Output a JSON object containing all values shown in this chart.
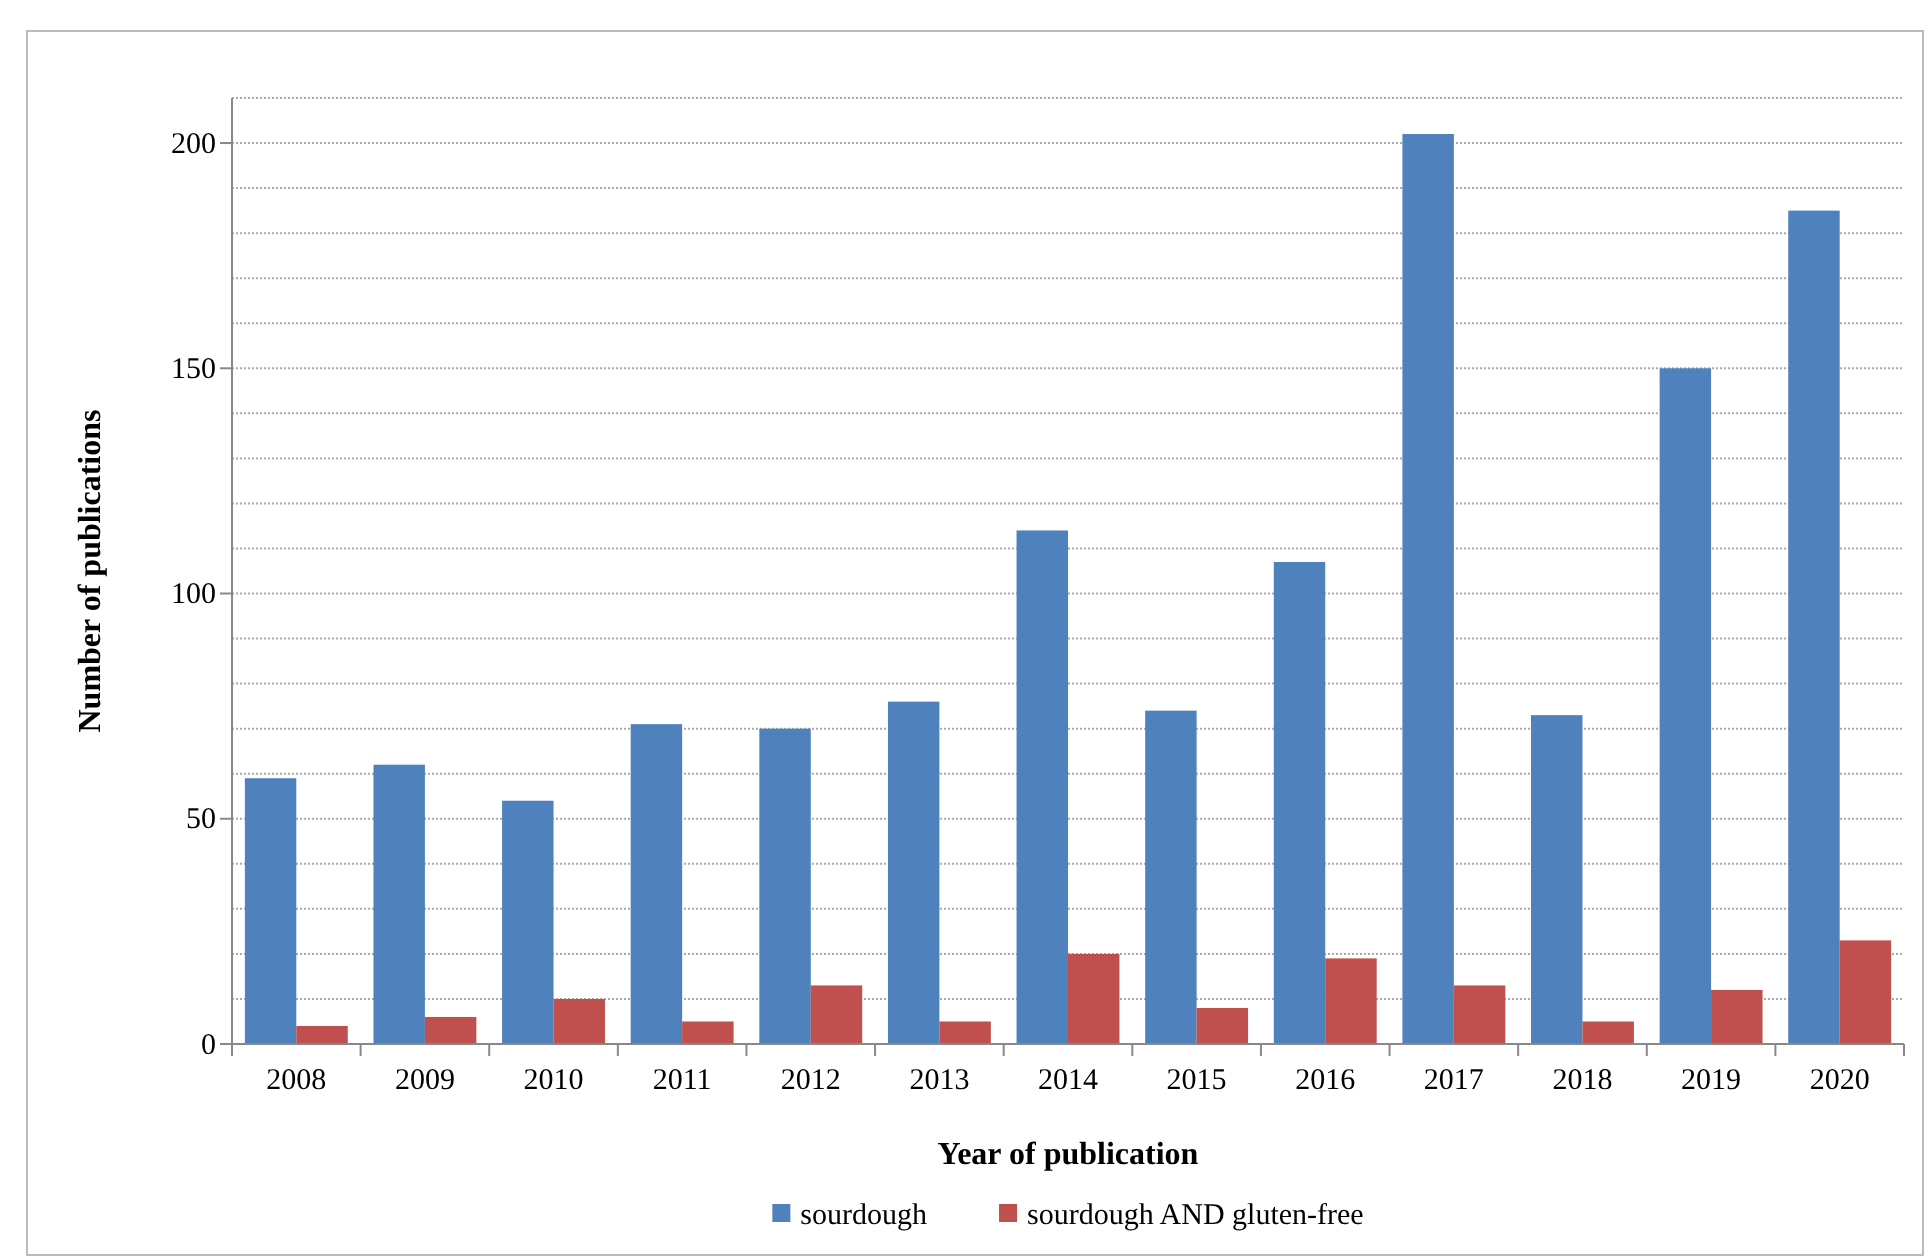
{
  "chart_data": {
    "type": "bar",
    "xlabel": "Year of publication",
    "ylabel": "Number of publications",
    "categories": [
      "2008",
      "2009",
      "2010",
      "2011",
      "2012",
      "2013",
      "2014",
      "2015",
      "2016",
      "2017",
      "2018",
      "2019",
      "2020"
    ],
    "series": [
      {
        "name": "sourdough",
        "color": "#4f81bd",
        "values": [
          59,
          62,
          54,
          71,
          70,
          76,
          114,
          74,
          107,
          202,
          73,
          150,
          185
        ]
      },
      {
        "name": "sourdough AND gluten-free",
        "color": "#c0504d",
        "values": [
          4,
          6,
          10,
          5,
          13,
          5,
          20,
          8,
          19,
          13,
          5,
          12,
          23
        ]
      }
    ],
    "ylim": [
      0,
      210
    ],
    "yticks": [
      0,
      {
        "value": 10,
        "label": null
      },
      {
        "value": 20,
        "label": null
      },
      {
        "value": 30,
        "label": null
      },
      {
        "value": 40,
        "label": null
      },
      50,
      {
        "value": 60,
        "label": null
      },
      {
        "value": 70,
        "label": null
      },
      {
        "value": 80,
        "label": null
      },
      {
        "value": 90,
        "label": null
      },
      100,
      {
        "value": 110,
        "label": null
      },
      {
        "value": 120,
        "label": null
      },
      {
        "value": 130,
        "label": null
      },
      {
        "value": 140,
        "label": null
      },
      150,
      {
        "value": 160,
        "label": null
      },
      {
        "value": 170,
        "label": null
      },
      {
        "value": 180,
        "label": null
      },
      {
        "value": 190,
        "label": null
      },
      200,
      {
        "value": 210,
        "label": null
      }
    ],
    "grid": "y",
    "legend": "bottom"
  }
}
